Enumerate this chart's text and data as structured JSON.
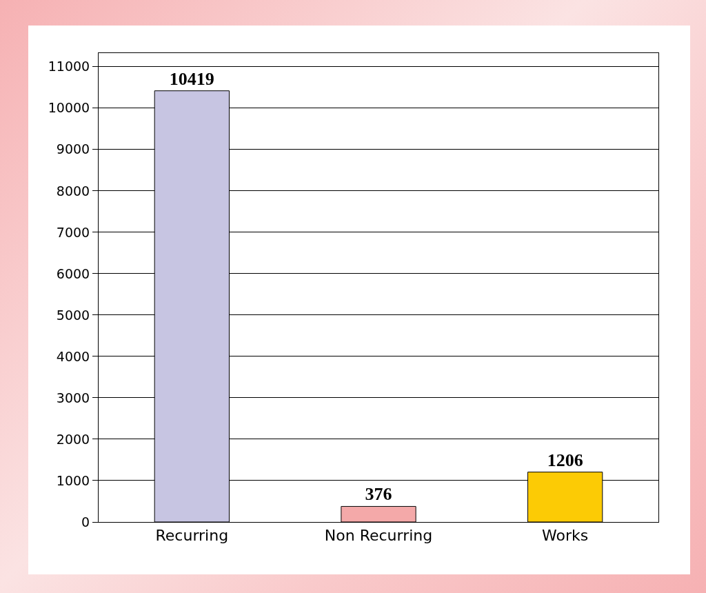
{
  "chart_data": {
    "type": "bar",
    "categories": [
      "Recurring",
      "Non Recurring",
      "Works"
    ],
    "values": [
      10419,
      376,
      1206
    ],
    "colors": [
      "#c7c5e2",
      "#f4a9a9",
      "#fccb05"
    ],
    "ylim": [
      0,
      11330
    ],
    "yticks": [
      0,
      1000,
      2000,
      3000,
      4000,
      5000,
      6000,
      7000,
      8000,
      9000,
      10000,
      11000
    ],
    "grid": "y",
    "data_labels": true
  }
}
